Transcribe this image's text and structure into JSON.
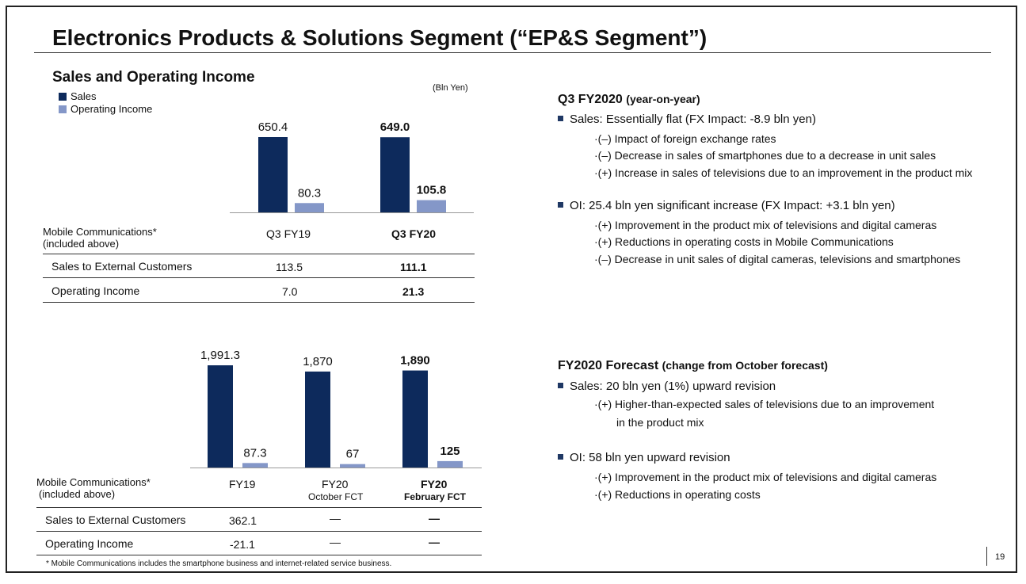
{
  "title": "Electronics Products & Solutions Segment (“EP&S Segment”)",
  "section_title": "Sales and Operating Income",
  "unit": "(Bln Yen)",
  "legend": [
    {
      "label": "Sales",
      "color": "#0d2a5c"
    },
    {
      "label": "Operating Income",
      "color": "#8497c8"
    }
  ],
  "chart_data": [
    {
      "type": "bar",
      "categories": [
        "Q3 FY19",
        "Q3 FY20"
      ],
      "series": [
        {
          "name": "Sales",
          "values": [
            650.4,
            649.0
          ],
          "labels": [
            "650.4",
            "649.0"
          ]
        },
        {
          "name": "Operating Income",
          "values": [
            80.3,
            105.8
          ],
          "labels": [
            "80.3",
            "105.8"
          ]
        }
      ],
      "bold_category_index": 1
    },
    {
      "type": "bar",
      "categories": [
        "FY19",
        "FY20 October FCT",
        "FY20 February FCT"
      ],
      "series": [
        {
          "name": "Sales",
          "values": [
            1991.3,
            1870,
            1890
          ],
          "labels": [
            "1,991.3",
            "1,870",
            "1,890"
          ]
        },
        {
          "name": "Operating Income",
          "values": [
            87.3,
            67,
            125
          ],
          "labels": [
            "87.3",
            "67",
            "125"
          ]
        }
      ],
      "bold_category_index": 2
    }
  ],
  "table1": {
    "header_label": "Mobile Communications*",
    "header_sub": "(included above)",
    "col1": "Q3 FY19",
    "col2": "Q3 FY20",
    "rows": [
      {
        "label": "Sales to External Customers",
        "v1": "113.5",
        "v2": "111.1"
      },
      {
        "label": "Operating Income",
        "v1": "7.0",
        "v2": "21.3"
      }
    ]
  },
  "table2": {
    "header_label": "Mobile Communications*",
    "header_sub": "(included above)",
    "col1": "FY19",
    "col2": "FY20",
    "col2_sub": "October FCT",
    "col3": "FY20",
    "col3_sub": "February FCT",
    "rows": [
      {
        "label": "Sales to External Customers",
        "v1": "362.1",
        "v2": "—",
        "v3": "—"
      },
      {
        "label": "Operating Income",
        "v1": "-21.1",
        "v2": "—",
        "v3": "—"
      }
    ]
  },
  "q3": {
    "heading": "Q3 FY2020",
    "heading_note": "(year-on-year)",
    "sales_bullet": "Sales: Essentially flat (FX Impact: -8.9 bln yen)",
    "sales_points": [
      "·(–) Impact of foreign exchange rates",
      "·(–) Decrease in sales of smartphones due to a decrease in unit sales",
      "·(+) Increase in sales of televisions due to an improvement in the product mix"
    ],
    "oi_bullet": "OI: 25.4 bln yen significant increase (FX Impact: +3.1 bln yen)",
    "oi_points": [
      "·(+) Improvement in the product mix of televisions and digital cameras",
      "·(+) Reductions in operating costs in Mobile Communications",
      "·(–) Decrease in unit sales of digital cameras, televisions and smartphones"
    ]
  },
  "fy": {
    "heading": "FY2020 Forecast",
    "heading_note": "(change from October forecast)",
    "sales_bullet": "Sales: 20 bln yen (1%) upward revision",
    "sales_points": [
      "·(+) Higher-than-expected sales of televisions due to an improvement",
      "in the product mix"
    ],
    "oi_bullet": "OI: 58 bln yen upward revision",
    "oi_points": [
      "·(+) Improvement in the product mix of televisions and digital cameras",
      "·(+) Reductions in operating costs"
    ]
  },
  "footnote": "* Mobile Communications includes the smartphone business and internet-related service business.",
  "page_number": "19"
}
